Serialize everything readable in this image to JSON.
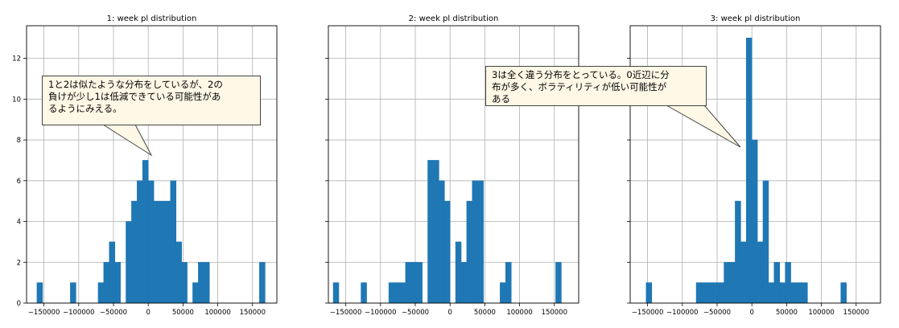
{
  "chart_data": [
    {
      "type": "bar",
      "title": "1: week pl distribution",
      "bin_width": 8000,
      "bars": [
        {
          "x": -160000,
          "count": 1
        },
        {
          "x": -112000,
          "count": 1
        },
        {
          "x": -72000,
          "count": 1
        },
        {
          "x": -64000,
          "count": 2
        },
        {
          "x": -56000,
          "count": 3
        },
        {
          "x": -48000,
          "count": 2
        },
        {
          "x": -32000,
          "count": 4
        },
        {
          "x": -24000,
          "count": 5
        },
        {
          "x": -16000,
          "count": 6
        },
        {
          "x": -8000,
          "count": 7
        },
        {
          "x": 0,
          "count": 6
        },
        {
          "x": 8000,
          "count": 5
        },
        {
          "x": 16000,
          "count": 5
        },
        {
          "x": 24000,
          "count": 5
        },
        {
          "x": 32000,
          "count": 6
        },
        {
          "x": 40000,
          "count": 3
        },
        {
          "x": 48000,
          "count": 2
        },
        {
          "x": 64000,
          "count": 1
        },
        {
          "x": 72000,
          "count": 2
        },
        {
          "x": 80000,
          "count": 2
        },
        {
          "x": 160000,
          "count": 2
        }
      ],
      "xlim": [
        -175000,
        185000
      ],
      "ylim": [
        0,
        13.6
      ],
      "xticks": [
        -150000,
        -100000,
        -50000,
        0,
        50000,
        100000,
        150000
      ],
      "yticks": [
        0,
        2,
        4,
        6,
        8,
        10,
        12
      ],
      "grid": true
    },
    {
      "type": "bar",
      "title": "2: week pl distribution",
      "bin_width": 8000,
      "bars": [
        {
          "x": -168000,
          "count": 1
        },
        {
          "x": -128000,
          "count": 1
        },
        {
          "x": -88000,
          "count": 1
        },
        {
          "x": -80000,
          "count": 1
        },
        {
          "x": -72000,
          "count": 1
        },
        {
          "x": -64000,
          "count": 2
        },
        {
          "x": -56000,
          "count": 2
        },
        {
          "x": -48000,
          "count": 2
        },
        {
          "x": -32000,
          "count": 7
        },
        {
          "x": -24000,
          "count": 7
        },
        {
          "x": -16000,
          "count": 6
        },
        {
          "x": -8000,
          "count": 5
        },
        {
          "x": 8000,
          "count": 3
        },
        {
          "x": 16000,
          "count": 2
        },
        {
          "x": 24000,
          "count": 5
        },
        {
          "x": 32000,
          "count": 6
        },
        {
          "x": 40000,
          "count": 6
        },
        {
          "x": 72000,
          "count": 1
        },
        {
          "x": 80000,
          "count": 2
        },
        {
          "x": 152000,
          "count": 2
        }
      ],
      "xlim": [
        -175000,
        185000
      ],
      "ylim": [
        0,
        13.6
      ],
      "xticks": [
        -150000,
        -100000,
        -50000,
        0,
        50000,
        100000,
        150000
      ],
      "yticks": [
        0,
        2,
        4,
        6,
        8,
        10,
        12
      ],
      "grid": true
    },
    {
      "type": "bar",
      "title": "3: week pl distribution",
      "bin_width": 8000,
      "bars": [
        {
          "x": -152000,
          "count": 1
        },
        {
          "x": -80000,
          "count": 1
        },
        {
          "x": -72000,
          "count": 1
        },
        {
          "x": -64000,
          "count": 1
        },
        {
          "x": -56000,
          "count": 1
        },
        {
          "x": -48000,
          "count": 1
        },
        {
          "x": -40000,
          "count": 2
        },
        {
          "x": -32000,
          "count": 2
        },
        {
          "x": -24000,
          "count": 5
        },
        {
          "x": -16000,
          "count": 3
        },
        {
          "x": -8000,
          "count": 13
        },
        {
          "x": 0,
          "count": 8
        },
        {
          "x": 8000,
          "count": 3
        },
        {
          "x": 16000,
          "count": 6
        },
        {
          "x": 24000,
          "count": 1
        },
        {
          "x": 32000,
          "count": 2
        },
        {
          "x": 40000,
          "count": 1
        },
        {
          "x": 48000,
          "count": 2
        },
        {
          "x": 56000,
          "count": 1
        },
        {
          "x": 64000,
          "count": 1
        },
        {
          "x": 72000,
          "count": 1
        },
        {
          "x": 128000,
          "count": 1
        }
      ],
      "xlim": [
        -175000,
        185000
      ],
      "ylim": [
        0,
        13.6
      ],
      "xticks": [
        -150000,
        -100000,
        -50000,
        0,
        50000,
        100000,
        150000
      ],
      "yticks": [
        0,
        2,
        4,
        6,
        8,
        10,
        12
      ],
      "grid": true
    }
  ],
  "callouts": [
    {
      "text": "1と2は似たような分布をしているが、2の\n負けが少し1は低減できている可能性があ\nるようにみえる。",
      "background": "#fff8e6"
    },
    {
      "text": "3は全く違う分布をとっている。0近辺に分\n布が多く、ボラティリティが低い可能性が\nある",
      "background": "#fff8e6"
    }
  ],
  "colors": {
    "bar": "#1f77b4",
    "grid": "#b0b0b0"
  }
}
